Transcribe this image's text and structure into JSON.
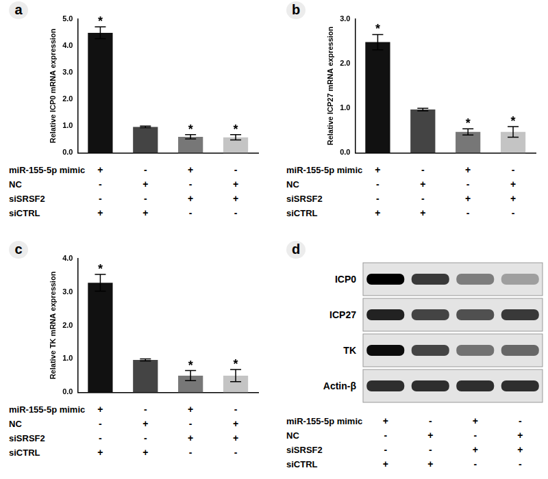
{
  "chart_data": [
    {
      "panel": "a",
      "type": "bar",
      "y_label": "Relative ICP0 mRNA expression",
      "categories": [
        null,
        null,
        null,
        null
      ],
      "values": [
        4.48,
        0.97,
        0.6,
        0.58
      ],
      "errors": [
        0.22,
        0.03,
        0.08,
        0.1
      ],
      "significance": [
        "*",
        null,
        "*",
        "*"
      ],
      "colors": [
        "#111111",
        "#444444",
        "#777777",
        "#c4c4c4"
      ],
      "ylim": [
        0,
        5
      ],
      "yticks": [
        {
          "value": 0,
          "label": "0.0"
        },
        {
          "value": 1,
          "label": "1.0"
        },
        {
          "value": 2,
          "label": "2.0"
        },
        {
          "value": 3,
          "label": "3.0"
        },
        {
          "value": 4,
          "label": "4.0"
        },
        {
          "value": 5,
          "label": "5.0"
        }
      ],
      "grid": false,
      "tick_labels": "y",
      "conditions": [
        {
          "name": "miR-155-5p mimic",
          "signs": [
            "+",
            "-",
            "+",
            "-"
          ]
        },
        {
          "name": "NC",
          "signs": [
            "-",
            "+",
            "-",
            "+"
          ]
        },
        {
          "name": "siSRSF2",
          "signs": [
            "-",
            "-",
            "+",
            "+"
          ]
        },
        {
          "name": "siCTRL",
          "signs": [
            "+",
            "+",
            "-",
            "-"
          ]
        }
      ]
    },
    {
      "panel": "b",
      "type": "bar",
      "y_label": "Relative ICP27 mRNA expression",
      "categories": [
        null,
        null,
        null,
        null
      ],
      "values": [
        2.48,
        0.97,
        0.47,
        0.47
      ],
      "errors": [
        0.17,
        0.03,
        0.07,
        0.12
      ],
      "significance": [
        "*",
        null,
        "*",
        "*"
      ],
      "colors": [
        "#111111",
        "#444444",
        "#777777",
        "#c4c4c4"
      ],
      "ylim": [
        0,
        3
      ],
      "yticks": [
        {
          "value": 0,
          "label": "0.0"
        },
        {
          "value": 1,
          "label": "1.0"
        },
        {
          "value": 2,
          "label": "2.0"
        },
        {
          "value": 3,
          "label": "3.0"
        }
      ],
      "grid": false,
      "tick_labels": "y",
      "conditions": [
        {
          "name": "miR-155-5p mimic",
          "signs": [
            "+",
            "-",
            "+",
            "-"
          ]
        },
        {
          "name": "NC",
          "signs": [
            "-",
            "+",
            "-",
            "+"
          ]
        },
        {
          "name": "siSRSF2",
          "signs": [
            "-",
            "-",
            "+",
            "+"
          ]
        },
        {
          "name": "siCTRL",
          "signs": [
            "+",
            "+",
            "-",
            "-"
          ]
        }
      ]
    },
    {
      "panel": "c",
      "type": "bar",
      "y_label": "Relative TK mRNA expression",
      "categories": [
        null,
        null,
        null,
        null
      ],
      "values": [
        3.27,
        0.97,
        0.5,
        0.5
      ],
      "errors": [
        0.25,
        0.03,
        0.15,
        0.18
      ],
      "significance": [
        "*",
        null,
        "*",
        "*"
      ],
      "colors": [
        "#111111",
        "#444444",
        "#777777",
        "#c4c4c4"
      ],
      "ylim": [
        0,
        4
      ],
      "yticks": [
        {
          "value": 0,
          "label": "0.0"
        },
        {
          "value": 1,
          "label": "1.0"
        },
        {
          "value": 2,
          "label": "2.0"
        },
        {
          "value": 3,
          "label": "3.0"
        },
        {
          "value": 4,
          "label": "4.0"
        }
      ],
      "grid": false,
      "tick_labels": "y",
      "conditions": [
        {
          "name": "miR-155-5p mimic",
          "signs": [
            "+",
            "-",
            "+",
            "-"
          ]
        },
        {
          "name": "NC",
          "signs": [
            "-",
            "+",
            "-",
            "+"
          ]
        },
        {
          "name": "siSRSF2",
          "signs": [
            "-",
            "-",
            "+",
            "+"
          ]
        },
        {
          "name": "siCTRL",
          "signs": [
            "+",
            "+",
            "-",
            "-"
          ]
        }
      ]
    }
  ],
  "blot": {
    "panel": "d",
    "rows": [
      {
        "label": "ICP0",
        "intensity": [
          1.0,
          0.75,
          0.45,
          0.3
        ]
      },
      {
        "label": "ICP27",
        "intensity": [
          0.85,
          0.7,
          0.65,
          0.75
        ]
      },
      {
        "label": "TK",
        "intensity": [
          0.95,
          0.7,
          0.5,
          0.55
        ]
      },
      {
        "label": "Actin-β",
        "intensity": [
          0.8,
          0.8,
          0.8,
          0.8
        ]
      }
    ],
    "conditions": [
      {
        "name": "miR-155-5p mimic",
        "signs": [
          "+",
          "-",
          "+",
          "-"
        ]
      },
      {
        "name": "NC",
        "signs": [
          "-",
          "+",
          "-",
          "+"
        ]
      },
      {
        "name": "siSRSF2",
        "signs": [
          "-",
          "-",
          "+",
          "+"
        ]
      },
      {
        "name": "siCTRL",
        "signs": [
          "+",
          "+",
          "-",
          "-"
        ]
      }
    ]
  }
}
